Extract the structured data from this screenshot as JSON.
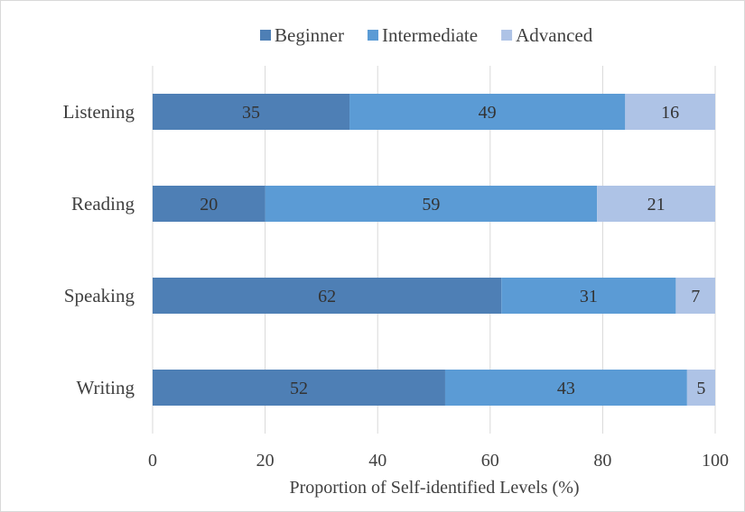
{
  "chart_data": {
    "type": "bar",
    "orientation": "horizontal",
    "stacked": true,
    "title": "",
    "xlabel": "Proportion of Self-identified Levels (%)",
    "ylabel": "",
    "xlim": [
      0,
      100
    ],
    "x_ticks": [
      0,
      20,
      40,
      60,
      80,
      100
    ],
    "grid": "vertical",
    "legend_position": "top",
    "categories": [
      "Listening",
      "Reading",
      "Speaking",
      "Writing"
    ],
    "series": [
      {
        "name": "Beginner",
        "color": "#4e7fb5",
        "values": [
          35,
          20,
          62,
          52
        ]
      },
      {
        "name": "Intermediate",
        "color": "#5b9bd5",
        "values": [
          49,
          59,
          31,
          43
        ]
      },
      {
        "name": "Advanced",
        "color": "#aec3e6",
        "values": [
          16,
          21,
          7,
          5
        ]
      }
    ]
  }
}
